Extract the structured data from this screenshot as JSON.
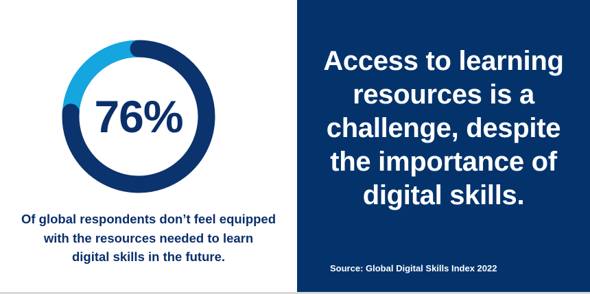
{
  "chart_data": {
    "type": "pie",
    "style": "donut",
    "values": [
      76,
      24
    ],
    "colors": [
      "#0b336d",
      "#15a5df"
    ],
    "center_label": "76%"
  },
  "left": {
    "caption_lines": [
      "Of global respondents don’t feel equipped",
      "with the resources needed to learn",
      "digital skills in the future."
    ]
  },
  "right": {
    "headline_lines": [
      "Access to learning",
      "resources is a",
      "challenge, despite",
      "the importance of",
      "digital skills."
    ],
    "source": "Source: Global Digital Skills Index 2022",
    "background": "#04336c"
  }
}
